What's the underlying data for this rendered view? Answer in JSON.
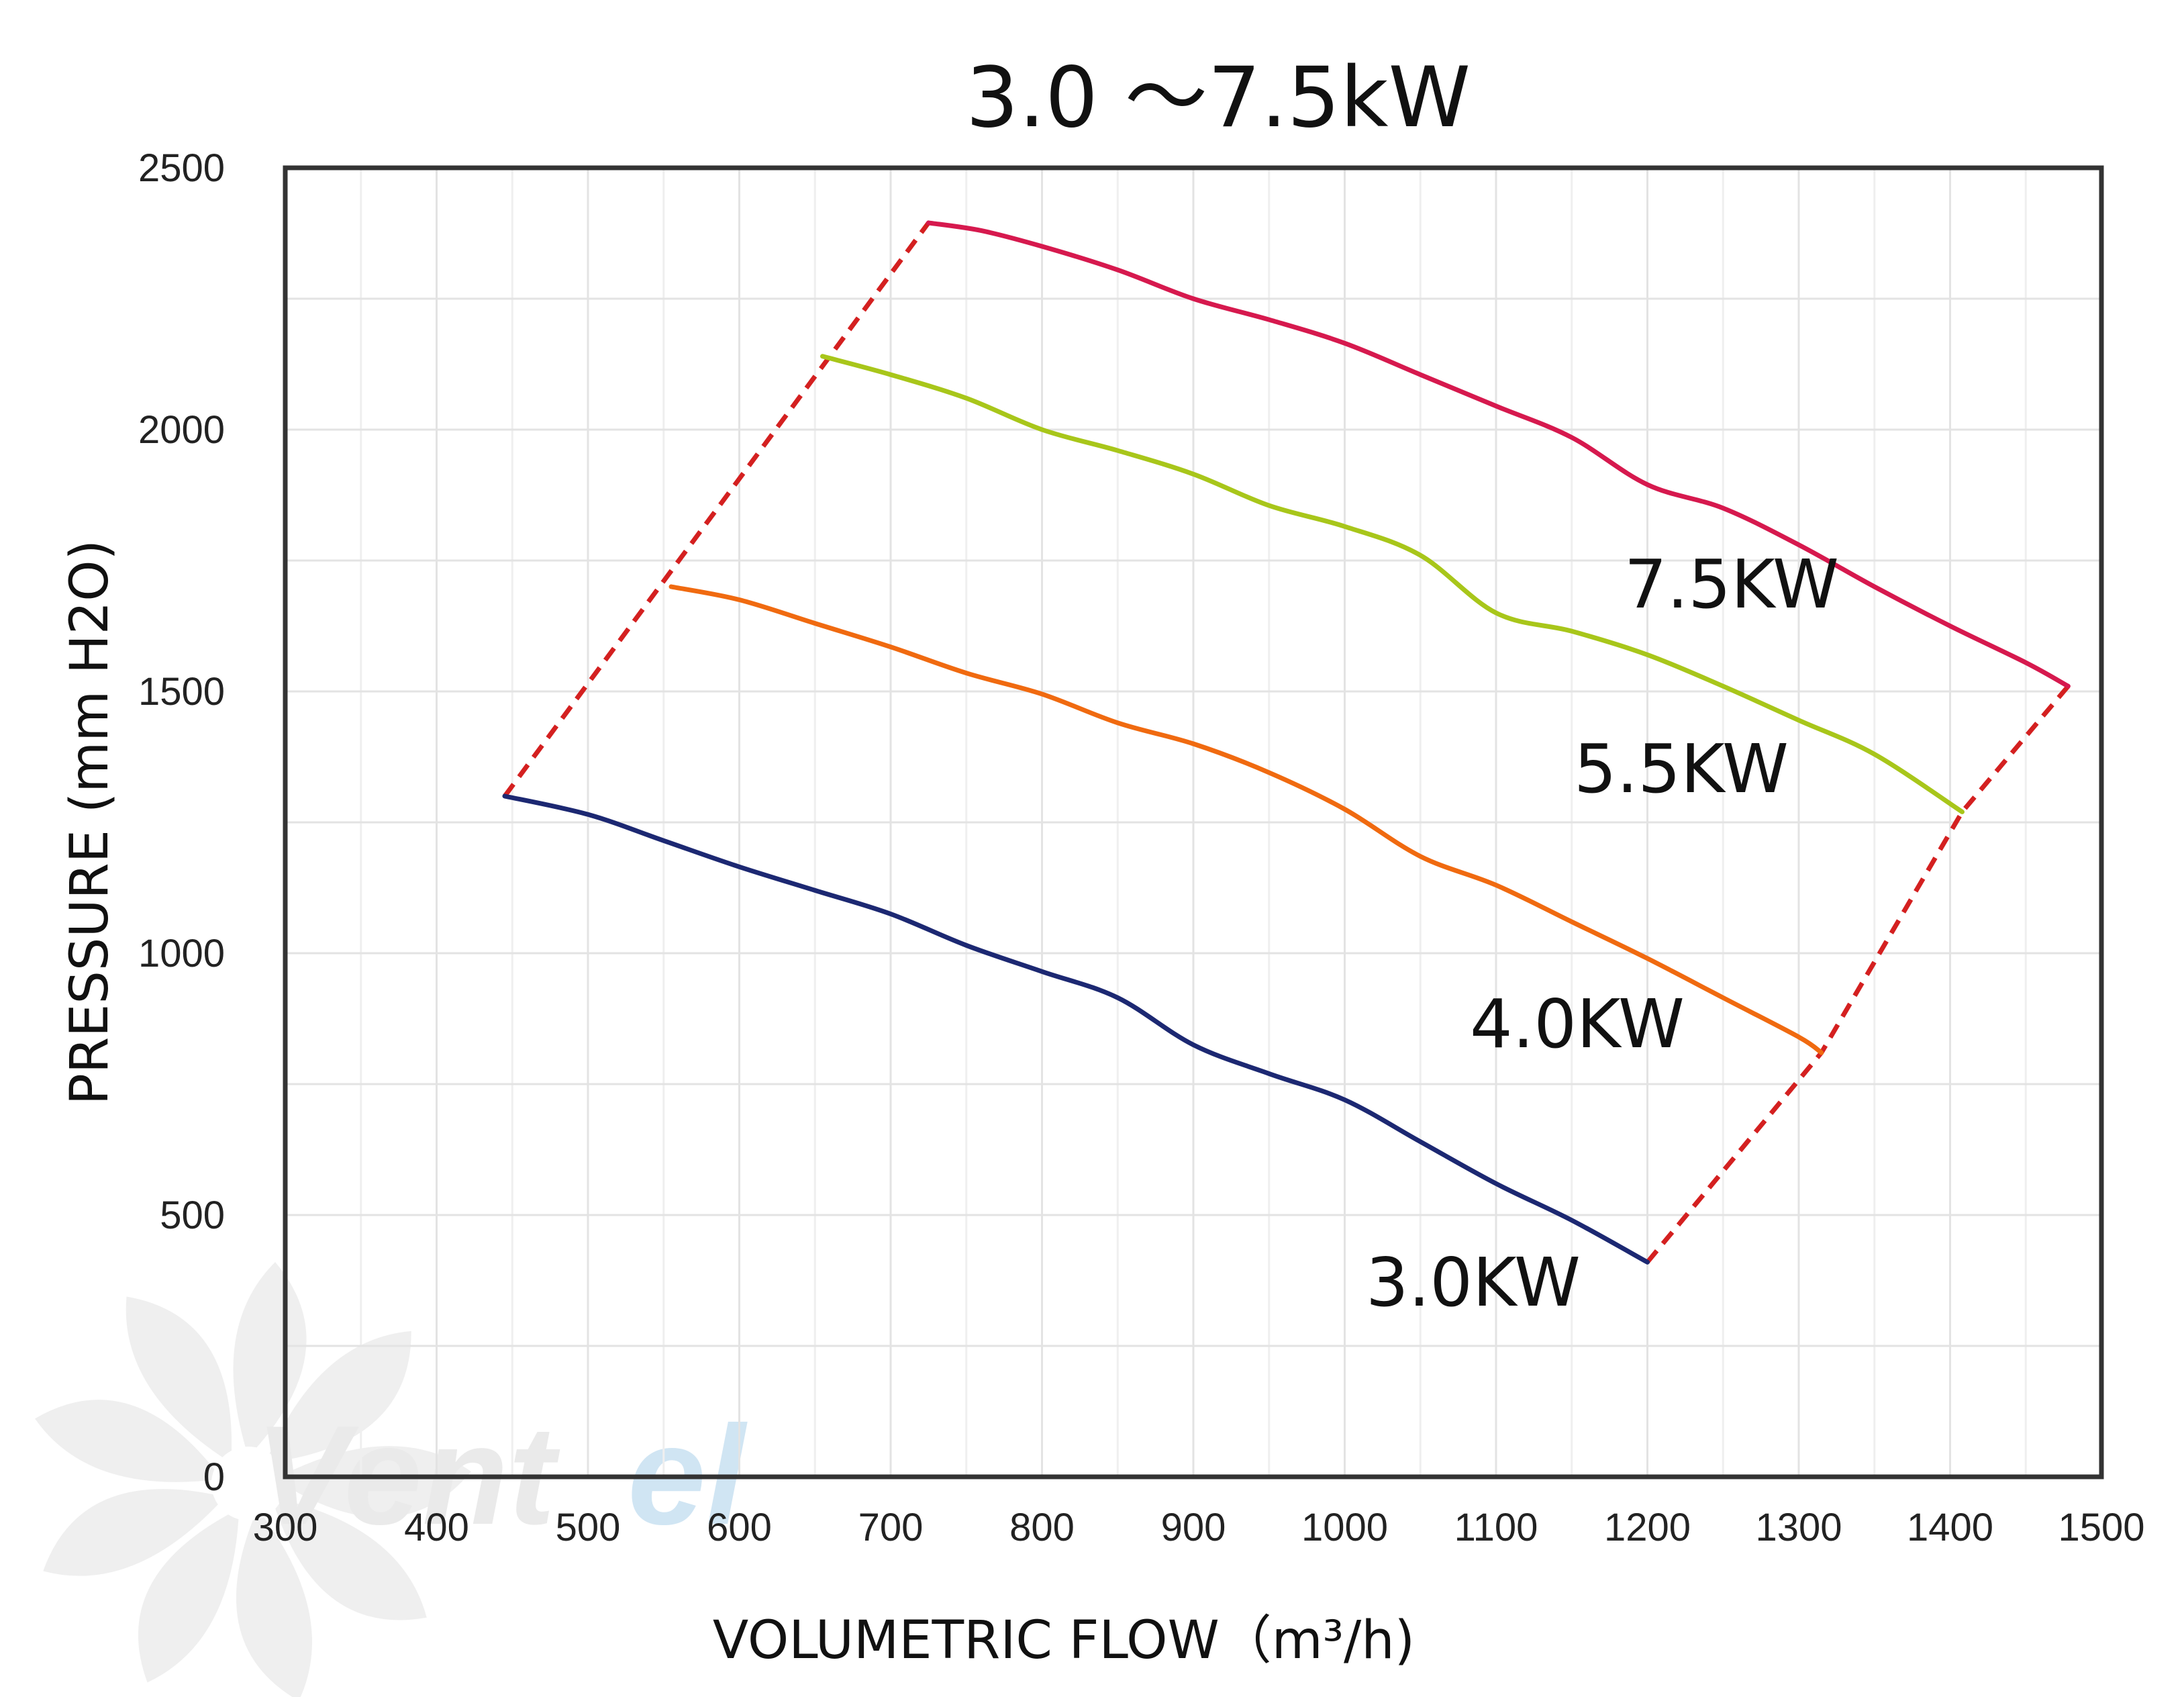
{
  "chart_data": {
    "type": "line",
    "title": "3.0 ～7.5kW",
    "xlabel": "VOLUMETRIC FLOW（m³/h)",
    "ylabel": "PRESSURE (mm H2O)",
    "xlim": [
      300,
      1500
    ],
    "ylim": [
      0,
      2500
    ],
    "xticks": [
      "300",
      "400",
      "500",
      "600",
      "700",
      "800",
      "900",
      "1000",
      "1100",
      "1200",
      "1300",
      "1400",
      "1500"
    ],
    "yticks": [
      "0",
      "500",
      "1000",
      "1500",
      "2000",
      "2500"
    ],
    "grid": true,
    "legend": "none",
    "series": [
      {
        "name": "7.5KW",
        "color": "#d6194e",
        "points": [
          [
            725,
            2395
          ],
          [
            760,
            2380
          ],
          [
            800,
            2350
          ],
          [
            850,
            2305
          ],
          [
            900,
            2250
          ],
          [
            950,
            2210
          ],
          [
            1000,
            2165
          ],
          [
            1050,
            2105
          ],
          [
            1100,
            2045
          ],
          [
            1150,
            1985
          ],
          [
            1200,
            1895
          ],
          [
            1250,
            1850
          ],
          [
            1300,
            1780
          ],
          [
            1350,
            1700
          ],
          [
            1400,
            1625
          ],
          [
            1450,
            1555
          ],
          [
            1478,
            1510
          ]
        ]
      },
      {
        "name": "5.5KW",
        "color": "#a8c61a",
        "points": [
          [
            655,
            2140
          ],
          [
            700,
            2105
          ],
          [
            750,
            2060
          ],
          [
            800,
            2000
          ],
          [
            850,
            1960
          ],
          [
            900,
            1915
          ],
          [
            950,
            1855
          ],
          [
            1000,
            1815
          ],
          [
            1050,
            1760
          ],
          [
            1100,
            1650
          ],
          [
            1150,
            1615
          ],
          [
            1200,
            1570
          ],
          [
            1250,
            1510
          ],
          [
            1300,
            1445
          ],
          [
            1350,
            1380
          ],
          [
            1408,
            1270
          ]
        ]
      },
      {
        "name": "4.0KW",
        "color": "#f06a10",
        "points": [
          [
            555,
            1700
          ],
          [
            600,
            1675
          ],
          [
            650,
            1630
          ],
          [
            700,
            1585
          ],
          [
            750,
            1535
          ],
          [
            800,
            1495
          ],
          [
            850,
            1440
          ],
          [
            900,
            1400
          ],
          [
            950,
            1345
          ],
          [
            1000,
            1275
          ],
          [
            1050,
            1185
          ],
          [
            1100,
            1130
          ],
          [
            1150,
            1060
          ],
          [
            1200,
            990
          ],
          [
            1250,
            915
          ],
          [
            1300,
            840
          ],
          [
            1315,
            810
          ]
        ]
      },
      {
        "name": "3.0KW",
        "color": "#1c2872",
        "points": [
          [
            445,
            1300
          ],
          [
            500,
            1265
          ],
          [
            550,
            1215
          ],
          [
            600,
            1165
          ],
          [
            650,
            1120
          ],
          [
            700,
            1075
          ],
          [
            750,
            1015
          ],
          [
            800,
            965
          ],
          [
            850,
            915
          ],
          [
            900,
            825
          ],
          [
            950,
            770
          ],
          [
            1000,
            720
          ],
          [
            1050,
            640
          ],
          [
            1100,
            560
          ],
          [
            1150,
            490
          ],
          [
            1200,
            410
          ]
        ]
      }
    ],
    "boundary": {
      "color": "#d42020",
      "left": [
        [
          445,
          1300
        ],
        [
          725,
          2395
        ]
      ],
      "right": [
        [
          1200,
          410
        ],
        [
          1315,
          810
        ],
        [
          1408,
          1270
        ],
        [
          1478,
          1510
        ]
      ]
    },
    "watermark": "Ventel"
  }
}
